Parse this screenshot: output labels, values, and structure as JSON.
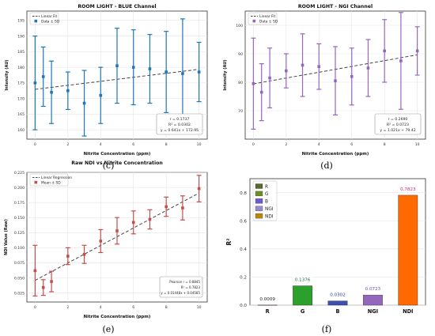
{
  "panels": [
    {
      "label": "(c)"
    },
    {
      "label": "(d)"
    },
    {
      "label": "(e)"
    },
    {
      "label": "(f)"
    }
  ],
  "chart_data": [
    {
      "type": "scatter",
      "title": "ROOM LIGHT - BLUE Channel",
      "xlabel": "Nitrite Concentration (ppm)",
      "ylabel": "Intensity (AU)",
      "xlim": [
        -0.5,
        10.5
      ],
      "ylim": [
        157,
        198
      ],
      "xticks": [
        0,
        2,
        4,
        6,
        8,
        10
      ],
      "yticks": [
        160,
        165,
        170,
        175,
        180,
        185,
        190,
        195
      ],
      "grid": true,
      "legend": [
        "Linear Fit",
        "Data ± SD"
      ],
      "legend_position": "top-left",
      "color": "#1f77b4",
      "points": [
        {
          "x": 0,
          "y": 175,
          "sd": 15
        },
        {
          "x": 0.5,
          "y": 177,
          "sd": 9.5
        },
        {
          "x": 1,
          "y": 172,
          "sd": 10
        },
        {
          "x": 2,
          "y": 172.5,
          "sd": 6
        },
        {
          "x": 3,
          "y": 168.5,
          "sd": 10.5
        },
        {
          "x": 4,
          "y": 171,
          "sd": 9
        },
        {
          "x": 5,
          "y": 180.5,
          "sd": 12
        },
        {
          "x": 6,
          "y": 180,
          "sd": 12
        },
        {
          "x": 7,
          "y": 179.5,
          "sd": 11
        },
        {
          "x": 8,
          "y": 178.5,
          "sd": 13
        },
        {
          "x": 9,
          "y": 178,
          "sd": 17.5
        },
        {
          "x": 10,
          "y": 178.5,
          "sd": 9.5
        }
      ],
      "fit": {
        "slope": 0.641,
        "intercept": 172.95
      },
      "stats_box": [
        "r = 0.1737",
        "R² = 0.0302",
        "y = 0.641x + 172.95"
      ]
    },
    {
      "type": "scatter",
      "title": "ROOM LIGHT - NGI Channel",
      "xlabel": "Nitrite Concentration (ppm)",
      "ylabel": "Intensity (AU)",
      "xlim": [
        -0.5,
        10.5
      ],
      "ylim": [
        60,
        105
      ],
      "xticks": [
        0,
        2,
        4,
        6,
        8,
        10
      ],
      "yticks": [
        70,
        80,
        90,
        100
      ],
      "grid": true,
      "legend": [
        "Linear Fit",
        "Data ± SD"
      ],
      "legend_position": "top-left",
      "color": "#9467bd",
      "points": [
        {
          "x": 0,
          "y": 79.5,
          "sd": 16
        },
        {
          "x": 0.5,
          "y": 76.5,
          "sd": 10
        },
        {
          "x": 1,
          "y": 81.5,
          "sd": 10.5
        },
        {
          "x": 2,
          "y": 84,
          "sd": 6
        },
        {
          "x": 3,
          "y": 86,
          "sd": 11
        },
        {
          "x": 4,
          "y": 85.5,
          "sd": 8
        },
        {
          "x": 5,
          "y": 80.5,
          "sd": 12
        },
        {
          "x": 6,
          "y": 82,
          "sd": 10
        },
        {
          "x": 7,
          "y": 85,
          "sd": 10
        },
        {
          "x": 8,
          "y": 91,
          "sd": 11
        },
        {
          "x": 9,
          "y": 87.5,
          "sd": 17
        },
        {
          "x": 10,
          "y": 91,
          "sd": 8.5
        }
      ],
      "fit": {
        "slope": 1.021,
        "intercept": 79.42
      },
      "stats_box": [
        "r = 0.2690",
        "R² = 0.0723",
        "y = 1.021x + 79.42"
      ]
    },
    {
      "type": "scatter",
      "title": "Raw NDI vs Nitrite Concentration",
      "xlabel": "Nitrite Concentration (ppm)",
      "ylabel": "NDI Value (Raw)",
      "xlim": [
        -0.5,
        10.5
      ],
      "ylim": [
        0.01,
        0.225
      ],
      "xticks": [
        0,
        2,
        4,
        6,
        8,
        10
      ],
      "yticks": [
        0.025,
        0.05,
        0.075,
        0.1,
        0.125,
        0.15,
        0.175,
        0.2,
        0.225
      ],
      "ytick_labels": [
        "0.025",
        "0.050",
        "0.075",
        "0.100",
        "0.125",
        "0.150",
        "0.175",
        "0.200",
        "0.225"
      ],
      "grid": true,
      "legend": [
        "Linear Regression",
        "Mean ± SD"
      ],
      "legend_position": "top-left",
      "color": "#c0504d",
      "points": [
        {
          "x": 0,
          "y": 0.062,
          "sd": 0.042
        },
        {
          "x": 0.5,
          "y": 0.034,
          "sd": 0.013
        },
        {
          "x": 1,
          "y": 0.044,
          "sd": 0.017
        },
        {
          "x": 2,
          "y": 0.086,
          "sd": 0.014
        },
        {
          "x": 3,
          "y": 0.089,
          "sd": 0.015
        },
        {
          "x": 4,
          "y": 0.111,
          "sd": 0.019
        },
        {
          "x": 5,
          "y": 0.128,
          "sd": 0.022
        },
        {
          "x": 6,
          "y": 0.142,
          "sd": 0.019
        },
        {
          "x": 7,
          "y": 0.147,
          "sd": 0.016
        },
        {
          "x": 8,
          "y": 0.168,
          "sd": 0.016
        },
        {
          "x": 9,
          "y": 0.166,
          "sd": 0.02
        },
        {
          "x": 10,
          "y": 0.198,
          "sd": 0.022
        }
      ],
      "fit": {
        "slope": 0.01448,
        "intercept": 0.04585
      },
      "stats_box": [
        "Pearson r = 0.8845",
        "R² = 0.7823",
        "y = 0.01448x + 0.04585"
      ]
    },
    {
      "type": "bar",
      "title": "",
      "ylabel": "R²",
      "categories": [
        "R",
        "G",
        "B",
        "NGI",
        "NDI"
      ],
      "values": [
        0.0009,
        0.1376,
        0.0302,
        0.0723,
        0.7823
      ],
      "value_labels": [
        "0.0009",
        "0.1376",
        "0.0302",
        "0.0723",
        "0.7823"
      ],
      "colors": [
        "#d62728",
        "#2ca02c",
        "#3d4fb0",
        "#9467bd",
        "#ff6a00"
      ],
      "label_colors": [
        "#222222",
        "#1a7a3a",
        "#2a3a9a",
        "#7a4aa0",
        "#e0227a"
      ],
      "ylim": [
        0,
        0.9
      ],
      "yticks": [
        0,
        0.2,
        0.4,
        0.6,
        0.8
      ],
      "ytick_labels": [
        "0.0",
        "0.2",
        "0.4",
        "0.6",
        "0.8"
      ],
      "grid": true,
      "legend": [
        {
          "name": "R",
          "color": "#556b2f"
        },
        {
          "name": "G",
          "color": "#6b8e23"
        },
        {
          "name": "B",
          "color": "#6a5acd"
        },
        {
          "name": "NGI",
          "color": "#9b89d0"
        },
        {
          "name": "NDI",
          "color": "#b8860b"
        }
      ],
      "legend_position": "top-left"
    }
  ]
}
